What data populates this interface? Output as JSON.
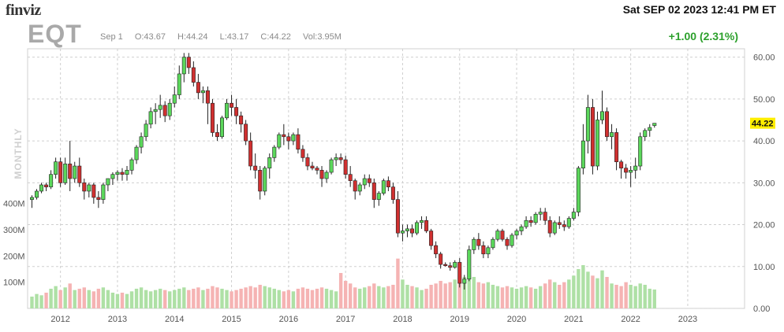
{
  "header": {
    "logo": "finviz",
    "datetime": "Sat SEP 02 2023 12:41 PM ET",
    "ticker": "EQT",
    "period_label": "Sep 1",
    "open": "O:43.67",
    "high": "H:44.24",
    "low": "L:43.17",
    "close": "C:44.22",
    "volume": "Vol:3.95M",
    "change": "+1.00 (2.31%)"
  },
  "colors": {
    "up": "#5bd75b",
    "down": "#d03030",
    "vol_up": "#aee0a5",
    "vol_down": "#f5b3b3",
    "price_badge": "#ffee00"
  },
  "chart_data": {
    "type": "candlestick",
    "interval_label": "MONTHLY",
    "last_price_label": "44.22",
    "x_ticks": [
      "2012",
      "2013",
      "2014",
      "2015",
      "2016",
      "2017",
      "2018",
      "2019",
      "2020",
      "2021",
      "2022",
      "2023"
    ],
    "x_tick_index": [
      6,
      18,
      30,
      42,
      54,
      66,
      78,
      90,
      102,
      114,
      126,
      138
    ],
    "y_ticks": [
      "0.00",
      "10.00",
      "20.00",
      "30.00",
      "40.00",
      "50.00",
      "60.00"
    ],
    "y_range": [
      0,
      62
    ],
    "volume_ticks": [
      "100M",
      "200M",
      "300M",
      "400M"
    ],
    "volume_range": [
      0,
      420
    ],
    "ohlcv": [
      [
        26,
        27,
        24,
        26.5,
        45
      ],
      [
        26.5,
        28.5,
        26,
        28,
        55
      ],
      [
        28,
        30,
        27.5,
        29.5,
        50
      ],
      [
        29.5,
        30,
        28,
        29,
        60
      ],
      [
        29,
        33,
        28.5,
        32,
        75
      ],
      [
        32,
        36,
        31,
        35,
        85
      ],
      [
        35,
        36,
        29,
        30,
        70
      ],
      [
        30,
        36,
        29.5,
        34.5,
        80
      ],
      [
        34.5,
        40,
        28,
        31,
        95
      ],
      [
        31,
        35,
        30,
        34,
        70
      ],
      [
        34,
        36,
        29,
        30,
        75
      ],
      [
        30,
        31,
        26,
        28,
        80
      ],
      [
        28,
        30,
        26.5,
        29.5,
        70
      ],
      [
        29.5,
        30,
        25,
        26.5,
        65
      ],
      [
        26.5,
        28,
        24,
        26,
        75
      ],
      [
        26,
        30,
        25,
        29.5,
        80
      ],
      [
        29.5,
        31,
        28,
        31,
        70
      ],
      [
        31,
        32.5,
        29.5,
        32,
        60
      ],
      [
        32,
        33,
        30.5,
        32.5,
        55
      ],
      [
        32.5,
        33.5,
        30.5,
        32,
        60
      ],
      [
        32,
        34,
        30.5,
        33,
        55
      ],
      [
        33,
        36,
        32,
        35.5,
        65
      ],
      [
        35.5,
        39,
        34.5,
        38.5,
        75
      ],
      [
        38.5,
        42,
        37,
        41,
        80
      ],
      [
        41,
        45,
        40,
        44,
        70
      ],
      [
        44,
        48,
        43,
        47,
        65
      ],
      [
        47,
        49,
        44,
        47.5,
        70
      ],
      [
        47.5,
        51,
        45.5,
        48.5,
        75
      ],
      [
        48.5,
        49.5,
        44.5,
        46,
        70
      ],
      [
        46,
        50,
        45,
        49,
        65
      ],
      [
        49,
        53,
        48,
        51,
        70
      ],
      [
        51,
        58,
        50,
        56,
        75
      ],
      [
        56,
        61,
        54,
        60,
        80
      ],
      [
        60,
        61,
        56,
        57.5,
        70
      ],
      [
        57.5,
        59,
        53,
        54,
        75
      ],
      [
        54,
        56,
        50,
        51.5,
        80
      ],
      [
        51.5,
        53,
        49,
        52,
        70
      ],
      [
        52,
        53,
        44,
        49,
        75
      ],
      [
        49,
        50,
        41,
        42,
        85
      ],
      [
        42,
        44,
        40,
        41,
        80
      ],
      [
        41,
        46,
        40.5,
        45.5,
        75
      ],
      [
        45.5,
        50,
        45,
        49,
        70
      ],
      [
        49,
        51,
        46,
        48,
        65
      ],
      [
        48,
        50,
        44,
        46,
        70
      ],
      [
        46,
        47,
        42,
        44,
        75
      ],
      [
        44,
        45,
        39,
        40,
        80
      ],
      [
        40,
        42,
        33,
        34,
        85
      ],
      [
        34,
        37,
        31,
        33,
        80
      ],
      [
        33,
        34,
        26,
        28,
        90
      ],
      [
        28,
        34,
        27,
        33.5,
        85
      ],
      [
        33.5,
        37,
        31,
        36,
        80
      ],
      [
        36,
        39,
        35,
        38.5,
        75
      ],
      [
        38.5,
        42,
        38,
        41.5,
        70
      ],
      [
        41.5,
        44,
        39,
        41,
        65
      ],
      [
        41,
        42,
        38,
        40,
        70
      ],
      [
        40,
        42,
        39,
        41.5,
        65
      ],
      [
        41.5,
        43,
        37,
        38,
        75
      ],
      [
        38,
        39,
        35,
        36,
        80
      ],
      [
        36,
        37,
        33,
        34,
        75
      ],
      [
        34,
        35,
        33,
        33.5,
        70
      ],
      [
        33.5,
        34,
        32,
        33,
        75
      ],
      [
        33,
        34,
        29,
        31,
        80
      ],
      [
        31,
        33,
        30,
        32.5,
        75
      ],
      [
        32.5,
        36,
        32,
        35.5,
        70
      ],
      [
        35.5,
        37,
        34,
        36,
        65
      ],
      [
        36,
        37,
        34.5,
        35.5,
        135
      ],
      [
        35.5,
        36.5,
        31,
        32,
        105
      ],
      [
        32,
        34,
        29,
        30.5,
        95
      ],
      [
        30.5,
        31,
        26,
        28,
        80
      ],
      [
        28,
        30,
        27,
        29.5,
        75
      ],
      [
        29.5,
        32,
        28.5,
        31,
        80
      ],
      [
        31,
        32,
        29,
        30,
        85
      ],
      [
        30,
        31,
        24,
        26,
        95
      ],
      [
        26,
        28,
        24.5,
        27.5,
        85
      ],
      [
        27.5,
        31,
        27,
        30.5,
        80
      ],
      [
        30.5,
        31.5,
        28,
        29,
        85
      ],
      [
        29,
        30,
        25,
        26,
        90
      ],
      [
        26,
        28,
        17,
        18,
        190
      ],
      [
        18,
        20,
        16,
        18.5,
        110
      ],
      [
        18.5,
        20,
        17,
        19,
        90
      ],
      [
        19,
        20,
        17,
        18,
        85
      ],
      [
        18,
        21,
        17.5,
        20.5,
        80
      ],
      [
        20.5,
        22,
        19,
        21,
        70
      ],
      [
        21,
        22,
        18,
        18.5,
        75
      ],
      [
        18.5,
        19,
        14,
        15,
        90
      ],
      [
        15,
        16,
        12,
        13,
        95
      ],
      [
        13,
        13.5,
        9.5,
        10.5,
        105
      ],
      [
        10.5,
        11,
        10,
        10.2,
        95
      ],
      [
        10.2,
        11,
        9,
        9.8,
        100
      ],
      [
        9.8,
        11.5,
        9.5,
        11,
        110
      ],
      [
        11,
        12,
        5,
        6,
        130
      ],
      [
        6,
        8,
        4.5,
        7,
        120
      ],
      [
        7,
        15,
        6.5,
        14,
        150
      ],
      [
        14,
        17,
        13,
        16.5,
        120
      ],
      [
        16.5,
        18,
        14,
        15,
        100
      ],
      [
        15,
        16,
        12,
        13,
        95
      ],
      [
        13,
        15,
        12,
        14.5,
        100
      ],
      [
        14.5,
        17,
        14,
        16.5,
        90
      ],
      [
        16.5,
        19,
        16,
        18.5,
        85
      ],
      [
        18.5,
        19,
        16,
        16.5,
        80
      ],
      [
        16.5,
        17,
        14,
        15,
        85
      ],
      [
        15,
        18,
        14.5,
        17.5,
        80
      ],
      [
        17.5,
        19,
        16.5,
        18.5,
        75
      ],
      [
        18.5,
        20,
        17.5,
        19.5,
        80
      ],
      [
        19.5,
        22,
        19,
        21,
        85
      ],
      [
        21,
        22,
        19.5,
        20.5,
        80
      ],
      [
        20.5,
        23,
        20,
        22.5,
        75
      ],
      [
        22.5,
        24,
        21,
        23,
        85
      ],
      [
        23,
        24,
        20,
        21,
        95
      ],
      [
        21,
        22,
        17,
        18,
        110
      ],
      [
        18,
        21,
        17.5,
        20.5,
        100
      ],
      [
        20.5,
        22,
        19,
        20,
        90
      ],
      [
        20,
        21,
        18.5,
        19.5,
        100
      ],
      [
        19.5,
        22,
        19,
        21.5,
        110
      ],
      [
        21.5,
        24,
        21,
        23,
        125
      ],
      [
        23,
        34,
        22,
        33.5,
        150
      ],
      [
        33.5,
        44,
        32,
        40,
        165
      ],
      [
        40,
        51,
        37,
        48,
        140
      ],
      [
        48,
        50,
        32,
        34,
        125
      ],
      [
        34,
        47,
        33,
        45,
        115
      ],
      [
        45,
        52,
        44,
        47,
        145
      ],
      [
        47,
        48,
        40,
        41,
        120
      ],
      [
        41,
        44,
        38,
        42,
        95
      ],
      [
        42,
        43,
        33,
        35,
        90
      ],
      [
        35,
        35.5,
        31,
        33.5,
        85
      ],
      [
        33.5,
        34.5,
        31,
        32.5,
        100
      ],
      [
        32.5,
        34,
        29,
        33,
        90
      ],
      [
        33,
        36,
        31,
        34,
        85
      ],
      [
        34,
        42,
        33,
        41,
        95
      ],
      [
        41,
        43,
        40,
        42.5,
        90
      ],
      [
        42.5,
        44,
        41,
        43.2,
        75
      ],
      [
        43.67,
        44.24,
        43.17,
        44.22,
        72
      ]
    ]
  }
}
